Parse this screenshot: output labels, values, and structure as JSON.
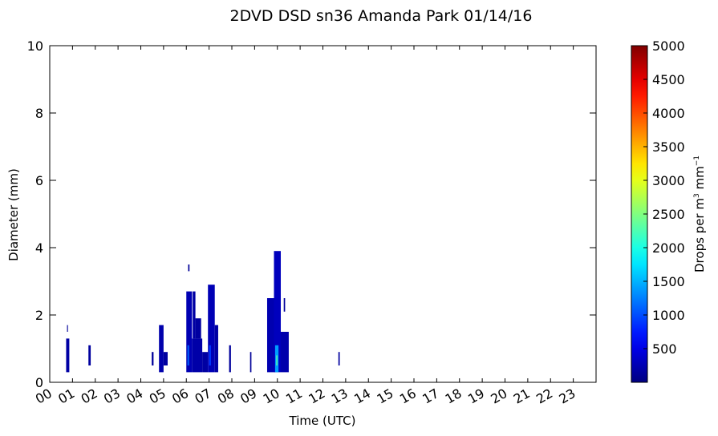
{
  "chart_data": {
    "type": "heatmap",
    "title": "2DVD DSD sn36 Amanda Park 01/14/16",
    "xlabel": "Time (UTC)",
    "ylabel": "Diameter (mm)",
    "xlim": [
      0,
      24
    ],
    "ylim": [
      0,
      10
    ],
    "x_ticks": [
      "00",
      "01",
      "02",
      "03",
      "04",
      "05",
      "06",
      "07",
      "08",
      "09",
      "10",
      "11",
      "12",
      "13",
      "14",
      "15",
      "16",
      "17",
      "18",
      "19",
      "20",
      "21",
      "22",
      "23"
    ],
    "y_ticks": [
      0,
      2,
      4,
      6,
      8,
      10
    ],
    "colorbar": {
      "label": "Drops per m³ mm⁻¹",
      "label_parts": [
        "Drops per m",
        "3",
        " mm",
        "−1"
      ],
      "range": [
        0,
        5000
      ],
      "ticks": [
        500,
        1000,
        1500,
        2000,
        2500,
        3000,
        3500,
        4000,
        4500,
        5000
      ],
      "colormap": "jet"
    },
    "cells": [
      {
        "t0": 0.72,
        "t1": 0.86,
        "d0": 0.3,
        "d1": 1.3,
        "v": 180
      },
      {
        "t0": 0.76,
        "t1": 0.8,
        "d0": 1.5,
        "d1": 1.7,
        "v": 120
      },
      {
        "t0": 1.7,
        "t1": 1.8,
        "d0": 0.5,
        "d1": 1.1,
        "v": 150
      },
      {
        "t0": 4.48,
        "t1": 4.56,
        "d0": 0.5,
        "d1": 0.9,
        "v": 130
      },
      {
        "t0": 4.8,
        "t1": 5.0,
        "d0": 0.3,
        "d1": 1.7,
        "v": 220
      },
      {
        "t0": 5.0,
        "t1": 5.18,
        "d0": 0.5,
        "d1": 0.9,
        "v": 160
      },
      {
        "t0": 6.0,
        "t1": 6.25,
        "d0": 0.3,
        "d1": 2.7,
        "v": 250
      },
      {
        "t0": 6.05,
        "t1": 6.12,
        "d0": 0.5,
        "d1": 1.1,
        "v": 1100
      },
      {
        "t0": 6.08,
        "t1": 6.14,
        "d0": 3.3,
        "d1": 3.5,
        "v": 120
      },
      {
        "t0": 6.25,
        "t1": 6.7,
        "d0": 0.3,
        "d1": 1.3,
        "v": 200
      },
      {
        "t0": 6.28,
        "t1": 6.4,
        "d0": 1.3,
        "d1": 2.7,
        "v": 180
      },
      {
        "t0": 6.4,
        "t1": 6.65,
        "d0": 1.3,
        "d1": 1.9,
        "v": 160
      },
      {
        "t0": 6.7,
        "t1": 6.95,
        "d0": 0.3,
        "d1": 0.9,
        "v": 170
      },
      {
        "t0": 6.95,
        "t1": 7.25,
        "d0": 0.3,
        "d1": 2.9,
        "v": 260
      },
      {
        "t0": 7.0,
        "t1": 7.08,
        "d0": 0.5,
        "d1": 1.1,
        "v": 900
      },
      {
        "t0": 7.25,
        "t1": 7.4,
        "d0": 0.3,
        "d1": 1.7,
        "v": 180
      },
      {
        "t0": 7.88,
        "t1": 7.96,
        "d0": 0.3,
        "d1": 1.1,
        "v": 140
      },
      {
        "t0": 8.8,
        "t1": 8.86,
        "d0": 0.3,
        "d1": 0.9,
        "v": 120
      },
      {
        "t0": 9.55,
        "t1": 9.95,
        "d0": 0.3,
        "d1": 2.5,
        "v": 240
      },
      {
        "t0": 9.85,
        "t1": 10.15,
        "d0": 0.3,
        "d1": 3.9,
        "v": 300
      },
      {
        "t0": 9.9,
        "t1": 10.05,
        "d0": 0.3,
        "d1": 1.1,
        "v": 1400
      },
      {
        "t0": 9.95,
        "t1": 10.0,
        "d0": 0.5,
        "d1": 0.8,
        "v": 2300
      },
      {
        "t0": 10.15,
        "t1": 10.5,
        "d0": 0.3,
        "d1": 1.5,
        "v": 220
      },
      {
        "t0": 10.28,
        "t1": 10.34,
        "d0": 2.1,
        "d1": 2.5,
        "v": 130
      },
      {
        "t0": 12.68,
        "t1": 12.74,
        "d0": 0.5,
        "d1": 0.9,
        "v": 150
      }
    ]
  }
}
